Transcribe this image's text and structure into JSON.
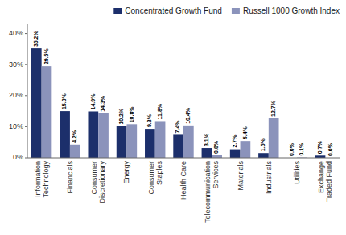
{
  "chart_data": {
    "type": "bar",
    "categories": [
      "Information\nTechnology",
      "Financials",
      "Consumer\nDiscretionary",
      "Energy",
      "Consumer\nStaples",
      "Health Care",
      "Telecommunication\nServices",
      "Materials",
      "Industrials",
      "Utilities",
      "Exchange\nTraded Fund"
    ],
    "series": [
      {
        "name": "Concentrated Growth Fund",
        "color": "#1c2f6b",
        "values": [
          35.2,
          15.0,
          14.9,
          10.2,
          9.3,
          7.4,
          3.1,
          2.7,
          1.5,
          0.0,
          0.7
        ],
        "value_labels": [
          "35.2%",
          "15.0%",
          "14.9%",
          "10.2%",
          "9.3%",
          "7.4%",
          "3.1%",
          "2.7%",
          "1.5%",
          "0.0%",
          "0.7%"
        ]
      },
      {
        "name": "Russell 1000 Growth Index",
        "color": "#8b93bb",
        "values": [
          29.5,
          4.2,
          14.3,
          10.8,
          11.8,
          10.4,
          0.8,
          5.4,
          12.7,
          0.1,
          0.0
        ],
        "value_labels": [
          "29.5%",
          "4.2%",
          "14.3%",
          "10.8%",
          "11.8%",
          "10.4%",
          "0.8%",
          "5.4%",
          "12.7%",
          "0.1%",
          "0.0%"
        ]
      }
    ],
    "ylim": [
      0,
      43
    ],
    "yticks": [
      {
        "value": 0,
        "label": "0%"
      },
      {
        "value": 10,
        "label": "10%"
      },
      {
        "value": 20,
        "label": "20%"
      },
      {
        "value": 30,
        "label": "30%"
      },
      {
        "value": 40,
        "label": "40%"
      }
    ],
    "grid": false,
    "legend": "upper right",
    "data_labels": true
  }
}
